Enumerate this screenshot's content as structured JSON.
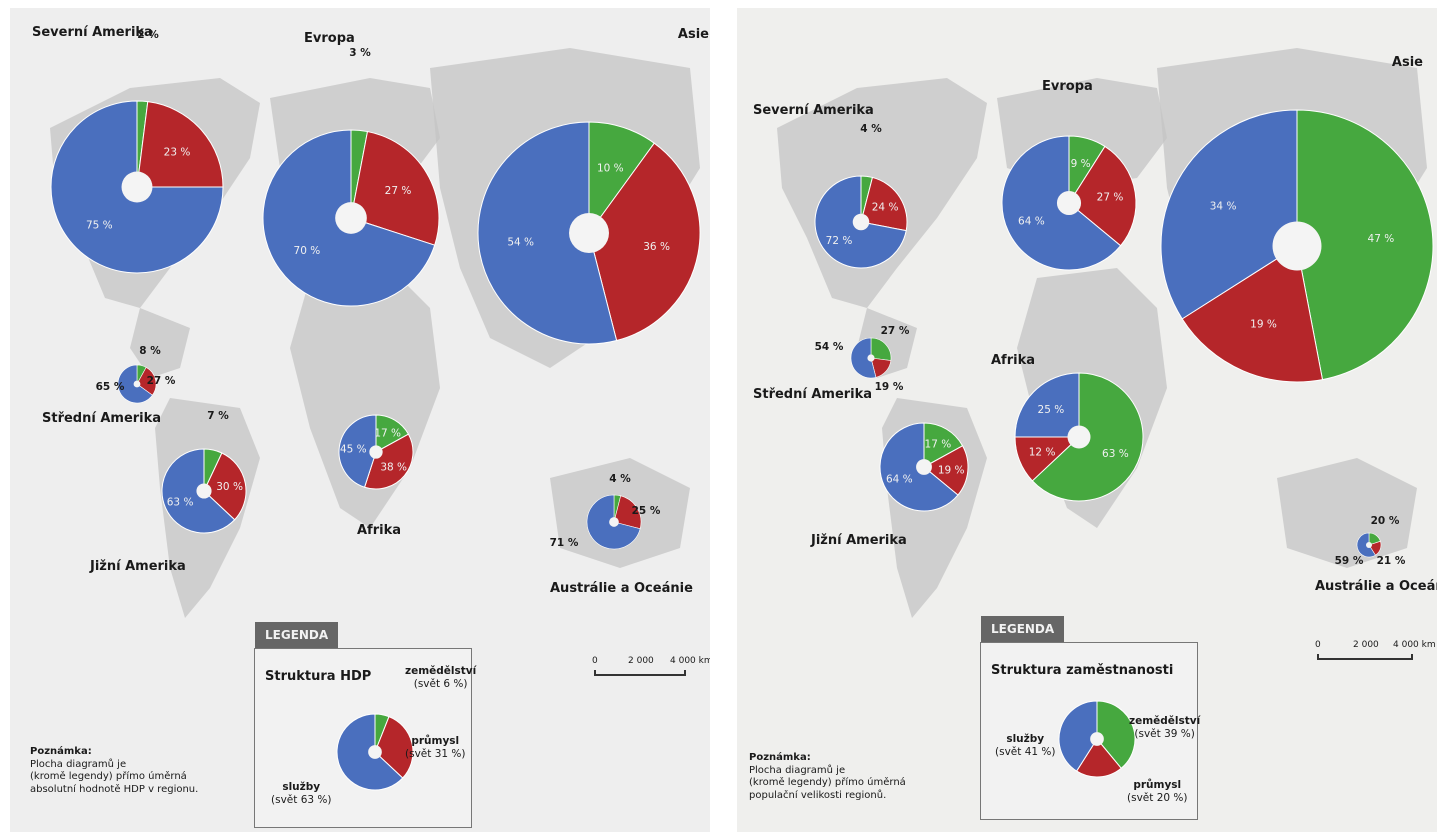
{
  "colors": {
    "services": "#4a6fbe",
    "industry": "#b5262a",
    "agriculture": "#46a83f",
    "map": "#c4c4c4"
  },
  "chart_data": [
    {
      "type": "pie",
      "title": "Struktura HDP",
      "categories": [
        "služby",
        "průmysl",
        "zemědělství"
      ],
      "regions": [
        {
          "name": "Severní Amerika",
          "values": [
            75,
            23,
            2
          ]
        },
        {
          "name": "Evropa",
          "values": [
            70,
            27,
            3
          ]
        },
        {
          "name": "Asie",
          "values": [
            54,
            36,
            10
          ]
        },
        {
          "name": "Střední Amerika",
          "values": [
            65,
            27,
            8
          ]
        },
        {
          "name": "Jižní Amerika",
          "values": [
            63,
            30,
            7
          ]
        },
        {
          "name": "Afrika",
          "values": [
            45,
            38,
            17
          ]
        },
        {
          "name": "Austrálie a Oceánie",
          "values": [
            71,
            25,
            4
          ]
        }
      ],
      "legend": {
        "tab": "LEGENDA",
        "title": "Struktura HDP",
        "items": [
          {
            "name": "zemědělství",
            "sub": "(svět 6 %)",
            "value": 6
          },
          {
            "name": "průmysl",
            "sub": "(svět 31 %)",
            "value": 31
          },
          {
            "name": "služby",
            "sub": "(svět 63 %)",
            "value": 63
          }
        ]
      },
      "note": {
        "heading": "Poznámka:",
        "lines": [
          "Plocha diagramů je",
          "(kromě legendy) přímo úměrná",
          "absolutní hodnotě HDP v regionu."
        ]
      },
      "scale": {
        "ticks": [
          "0",
          "2 000",
          "4 000 km"
        ]
      }
    },
    {
      "type": "pie",
      "title": "Struktura zaměstnanosti",
      "categories": [
        "služby",
        "průmysl",
        "zemědělství"
      ],
      "regions": [
        {
          "name": "Severní Amerika",
          "values": [
            72,
            24,
            4
          ]
        },
        {
          "name": "Evropa",
          "values": [
            64,
            27,
            9
          ]
        },
        {
          "name": "Asie",
          "values": [
            34,
            19,
            47
          ]
        },
        {
          "name": "Střední Amerika",
          "values": [
            54,
            19,
            27
          ]
        },
        {
          "name": "Jižní Amerika",
          "values": [
            64,
            19,
            17
          ]
        },
        {
          "name": "Afrika",
          "values": [
            25,
            12,
            63
          ]
        },
        {
          "name": "Austrálie a Oceánie",
          "values": [
            59,
            21,
            20
          ]
        }
      ],
      "legend": {
        "tab": "LEGENDA",
        "title": "Struktura zaměstnanosti",
        "items": [
          {
            "name": "zemědělství",
            "sub": "(svět 39 %)",
            "value": 39
          },
          {
            "name": "průmysl",
            "sub": "(svět 20 %)",
            "value": 20
          },
          {
            "name": "služby",
            "sub": "(svět 41 %)",
            "value": 41
          }
        ]
      },
      "note": {
        "heading": "Poznámka:",
        "lines": [
          "Plocha diagramů je",
          "(kromě legendy) přímo úměrná",
          "populační velikosti regionů."
        ]
      },
      "scale": {
        "ticks": [
          "0",
          "2 000",
          "4 000 km"
        ]
      }
    }
  ]
}
